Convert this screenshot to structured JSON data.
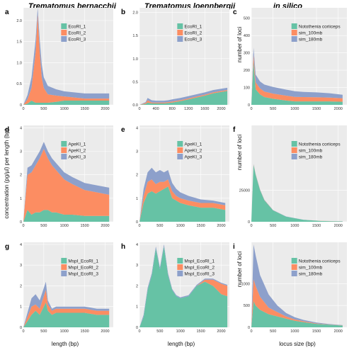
{
  "figure": {
    "col_titles": [
      "Trematomus bernacchii",
      "Trematomus loennbergii",
      "in silico"
    ],
    "ylabel_conc": "concentration (pg/µl) per length (bp)",
    "ylabel_loci": "number of loci",
    "xlabel_length": "length (bp)",
    "xlabel_locus": "locus size (bp)"
  },
  "colors": {
    "series1": "#66c2a5",
    "series2": "#fc8d62",
    "series3": "#8da0cb"
  },
  "chart_data": [
    {
      "id": "a",
      "letter": "a",
      "type": "area",
      "xlim": [
        0,
        2200
      ],
      "ylim": [
        0,
        2.3
      ],
      "xticks": [
        0,
        500,
        1000,
        1500,
        2000
      ],
      "xtick_labels": [
        "0",
        "500",
        "1000",
        "1500",
        "2000"
      ],
      "yticks": [
        0,
        0.5,
        1.0,
        1.5,
        2.0
      ],
      "ytick_labels": [
        "0",
        "0.5",
        "1.0",
        "1.5",
        "2.0"
      ],
      "legend": [
        "EcoRI_1",
        "EcoRI_2",
        "EcoRI_3"
      ],
      "xlabel": "",
      "x": [
        0,
        100,
        200,
        300,
        350,
        400,
        450,
        500,
        600,
        800,
        1000,
        1200,
        1500,
        1800,
        2100
      ],
      "series": [
        {
          "values": [
            0,
            0.03,
            0.1,
            0.05,
            0.05,
            0.05,
            0.05,
            0.05,
            0.05,
            0.07,
            0.1,
            0.1,
            0.1,
            0.1,
            0.1
          ]
        },
        {
          "values": [
            0,
            0.1,
            0.3,
            1.2,
            2.1,
            1.2,
            0.6,
            0.35,
            0.2,
            0.15,
            0.1,
            0.08,
            0.05,
            0.05,
            0.05
          ]
        },
        {
          "values": [
            0,
            0.1,
            0.25,
            0.3,
            0.4,
            0.3,
            0.3,
            0.25,
            0.2,
            0.15,
            0.12,
            0.12,
            0.12,
            0.12,
            0.12
          ]
        }
      ]
    },
    {
      "id": "b",
      "letter": "b",
      "type": "area",
      "xlim": [
        0,
        2200
      ],
      "ylim": [
        0,
        2.1
      ],
      "xticks": [
        0,
        400,
        800,
        1200,
        1600,
        2000
      ],
      "xtick_labels": [
        "0",
        "400",
        "800",
        "1200",
        "1600",
        "2000"
      ],
      "yticks": [
        0,
        0.5,
        1.0,
        1.5,
        2.0
      ],
      "ytick_labels": [
        "0.0",
        "0.5",
        "1.0",
        "1.5",
        "2.0"
      ],
      "legend": [
        "EcoRI_1",
        "EcoRI_2",
        "EcoRI_3"
      ],
      "xlabel": "",
      "x": [
        0,
        150,
        200,
        300,
        400,
        500,
        600,
        700,
        800,
        1000,
        1200,
        1400,
        1600,
        1800,
        2000,
        2150
      ],
      "series": [
        {
          "values": [
            0,
            0.02,
            0.05,
            0.03,
            0.03,
            0.03,
            0.03,
            0.04,
            0.05,
            0.08,
            0.12,
            0.16,
            0.2,
            0.25,
            0.28,
            0.3
          ]
        },
        {
          "values": [
            0,
            0.02,
            0.05,
            0.02,
            0.02,
            0.02,
            0.02,
            0.02,
            0.02,
            0.02,
            0.02,
            0.02,
            0.02,
            0.02,
            0.02,
            0.02
          ]
        },
        {
          "values": [
            0,
            0.02,
            0.05,
            0.05,
            0.04,
            0.04,
            0.04,
            0.04,
            0.05,
            0.05,
            0.05,
            0.05,
            0.05,
            0.05,
            0.05,
            0.05
          ]
        }
      ]
    },
    {
      "id": "c",
      "letter": "c",
      "type": "area",
      "xlim": [
        0,
        2200
      ],
      "ylim": [
        0,
        560
      ],
      "xticks": [
        0,
        500,
        1000,
        1500,
        2000
      ],
      "xtick_labels": [
        "0",
        "500",
        "1000",
        "1500",
        "2000"
      ],
      "yticks": [
        0,
        100,
        200,
        300,
        400,
        500
      ],
      "ytick_labels": [
        "0",
        "100",
        "200",
        "300",
        "400",
        "500"
      ],
      "legend": [
        "Notothenia coriiceps",
        "sim_100mb",
        "sim_180mb"
      ],
      "xlabel": "",
      "x": [
        0,
        50,
        100,
        200,
        300,
        500,
        800,
        1000,
        1200,
        1500,
        1800,
        2100
      ],
      "series": [
        {
          "values": [
            0,
            250,
            90,
            60,
            45,
            35,
            25,
            20,
            20,
            20,
            20,
            18
          ]
        },
        {
          "values": [
            0,
            40,
            40,
            35,
            32,
            30,
            28,
            26,
            25,
            24,
            22,
            20
          ]
        },
        {
          "values": [
            0,
            40,
            45,
            40,
            40,
            38,
            35,
            33,
            30,
            28,
            25,
            20
          ]
        }
      ]
    },
    {
      "id": "d",
      "letter": "d",
      "type": "area",
      "xlim": [
        0,
        2200
      ],
      "ylim": [
        0,
        4.1
      ],
      "xticks": [
        0,
        500,
        1000,
        1500,
        2000
      ],
      "xtick_labels": [
        "0",
        "500",
        "1000",
        "1500",
        "2000"
      ],
      "yticks": [
        0,
        1,
        2,
        3,
        4
      ],
      "ytick_labels": [
        "0",
        "1",
        "2",
        "3",
        "4"
      ],
      "legend": [
        "ApeKI_1",
        "ApeKI_2",
        "ApeKI_3"
      ],
      "xlabel": "",
      "x": [
        0,
        100,
        200,
        300,
        400,
        500,
        600,
        700,
        800,
        1000,
        1200,
        1500,
        1800,
        2100
      ],
      "series": [
        {
          "values": [
            0,
            0.5,
            0.3,
            0.4,
            0.4,
            0.5,
            0.5,
            0.4,
            0.4,
            0.3,
            0.3,
            0.25,
            0.25,
            0.25
          ]
        },
        {
          "values": [
            0,
            1.5,
            1.8,
            2.0,
            2.3,
            2.6,
            2.2,
            2.0,
            1.8,
            1.5,
            1.3,
            1.1,
            1.0,
            0.9
          ]
        },
        {
          "values": [
            0,
            0.3,
            0.3,
            0.3,
            0.3,
            0.3,
            0.3,
            0.3,
            0.3,
            0.3,
            0.3,
            0.3,
            0.3,
            0.3
          ]
        }
      ]
    },
    {
      "id": "e",
      "letter": "e",
      "type": "area",
      "xlim": [
        0,
        2200
      ],
      "ylim": [
        0,
        4.1
      ],
      "xticks": [
        0,
        500,
        1000,
        1500,
        2000
      ],
      "xtick_labels": [
        "0",
        "500",
        "1000",
        "1500",
        "2000"
      ],
      "yticks": [
        0,
        1,
        2,
        3,
        4
      ],
      "ytick_labels": [
        "0",
        "1",
        "2",
        "3",
        "4"
      ],
      "legend": [
        "ApeKI_1",
        "ApeKI_2",
        "ApeKI_3"
      ],
      "xlabel": "",
      "x": [
        0,
        100,
        200,
        300,
        400,
        500,
        600,
        700,
        800,
        900,
        1000,
        1200,
        1500,
        1800,
        2100
      ],
      "series": [
        {
          "values": [
            0,
            0.8,
            1.2,
            1.3,
            1.2,
            1.3,
            1.4,
            1.5,
            1.0,
            0.9,
            0.8,
            0.7,
            0.6,
            0.6,
            0.5
          ]
        },
        {
          "values": [
            0,
            0.3,
            0.5,
            0.5,
            0.4,
            0.4,
            0.3,
            0.3,
            0.3,
            0.2,
            0.2,
            0.2,
            0.2,
            0.2,
            0.2
          ]
        },
        {
          "values": [
            0,
            0.3,
            0.4,
            0.5,
            0.5,
            0.5,
            0.4,
            0.4,
            0.35,
            0.3,
            0.25,
            0.2,
            0.15,
            0.1,
            0.1
          ]
        }
      ]
    },
    {
      "id": "f",
      "letter": "f",
      "type": "area",
      "xlim": [
        0,
        2200
      ],
      "ylim": [
        0,
        76000
      ],
      "xticks": [
        0,
        500,
        1000,
        1500,
        2000
      ],
      "xtick_labels": [
        "0",
        "500",
        "1000",
        "1500",
        "2000"
      ],
      "yticks": [
        0,
        25000
      ],
      "ytick_labels": [
        "0",
        "25000"
      ],
      "legend": [
        "Notothenia coriiceps",
        "sim_100mb",
        "sim_180mb"
      ],
      "xlabel": "",
      "x": [
        0,
        50,
        100,
        200,
        300,
        500,
        800,
        1200,
        1600,
        2100
      ],
      "series": [
        {
          "values": [
            0,
            45000,
            37000,
            25000,
            17000,
            9000,
            4000,
            1500,
            600,
            300
          ]
        },
        {
          "values": [
            0,
            300,
            300,
            200,
            200,
            100,
            100,
            50,
            50,
            50
          ]
        },
        {
          "values": [
            0,
            300,
            300,
            200,
            200,
            100,
            100,
            50,
            50,
            50
          ]
        }
      ]
    },
    {
      "id": "g",
      "letter": "g",
      "type": "area",
      "xlim": [
        0,
        2200
      ],
      "ylim": [
        0,
        4.1
      ],
      "xticks": [
        0,
        500,
        1000,
        1500,
        2000
      ],
      "xtick_labels": [
        "0",
        "500",
        "1000",
        "1500",
        "2000"
      ],
      "yticks": [
        0,
        1,
        2,
        3,
        4
      ],
      "ytick_labels": [
        "0",
        "1",
        "2",
        "3",
        "4"
      ],
      "legend": [
        "MspI_EcoRI_1",
        "MspI_EcoRI_2",
        "MspI_EcoRI_3"
      ],
      "xlabel": "length (bp)",
      "x": [
        0,
        100,
        200,
        300,
        400,
        500,
        550,
        600,
        700,
        800,
        1000,
        1200,
        1500,
        1800,
        2100
      ],
      "series": [
        {
          "values": [
            0,
            0.3,
            0.6,
            0.8,
            0.6,
            1.0,
            1.2,
            0.8,
            0.6,
            0.7,
            0.7,
            0.7,
            0.7,
            0.6,
            0.6
          ]
        },
        {
          "values": [
            0,
            0.2,
            0.4,
            0.3,
            0.3,
            0.5,
            0.6,
            0.3,
            0.2,
            0.2,
            0.2,
            0.2,
            0.2,
            0.2,
            0.2
          ]
        },
        {
          "values": [
            0,
            0.2,
            0.4,
            0.5,
            0.4,
            0.4,
            0.4,
            0.2,
            0.1,
            0.1,
            0.1,
            0.1,
            0.1,
            0.1,
            0.1
          ]
        }
      ]
    },
    {
      "id": "h",
      "letter": "h",
      "type": "area",
      "xlim": [
        0,
        2200
      ],
      "ylim": [
        0,
        4.1
      ],
      "xticks": [
        0,
        500,
        1000,
        1500,
        2000
      ],
      "xtick_labels": [
        "0",
        "500",
        "1000",
        "1500",
        "2000"
      ],
      "yticks": [
        0,
        1,
        2,
        3,
        4
      ],
      "ytick_labels": [
        "0",
        "1",
        "2",
        "3",
        "4"
      ],
      "legend": [
        "MspI_EcoRI_1",
        "MspI_EcoRI_2",
        "MspI_EcoRI_3"
      ],
      "xlabel": "length (bp)",
      "x": [
        0,
        100,
        200,
        300,
        400,
        500,
        600,
        700,
        800,
        900,
        1000,
        1200,
        1400,
        1600,
        1800,
        2000,
        2150
      ],
      "series": [
        {
          "values": [
            0,
            0.5,
            1.8,
            2.5,
            3.8,
            2.8,
            3.9,
            2.5,
            1.8,
            1.5,
            1.4,
            1.5,
            2.0,
            2.2,
            2.0,
            1.6,
            1.5
          ]
        },
        {
          "values": [
            0,
            0,
            0,
            0,
            0,
            0,
            0,
            0,
            0,
            0,
            0,
            0,
            0,
            0.1,
            0.3,
            0.5,
            0.5
          ]
        },
        {
          "values": [
            0,
            0.1,
            0.1,
            0.1,
            0.1,
            0.1,
            0.1,
            0.1,
            0.05,
            0.05,
            0.05,
            0.05,
            0.05,
            0.05,
            0.05,
            0.05,
            0.05
          ]
        }
      ]
    },
    {
      "id": "i",
      "letter": "i",
      "type": "area",
      "xlim": [
        0,
        2200
      ],
      "ylim": [
        0,
        1950
      ],
      "xticks": [
        0,
        500,
        1000,
        1500,
        2000
      ],
      "xtick_labels": [
        "0",
        "500",
        "1000",
        "1500",
        "2000"
      ],
      "yticks": [
        0,
        500,
        1000
      ],
      "ytick_labels": [
        "0",
        "500",
        "1000"
      ],
      "legend": [
        "Notothenia coriiceps",
        "sim_100mb",
        "sim_180mb"
      ],
      "xlabel": "locus size (bp)",
      "x": [
        0,
        50,
        100,
        200,
        400,
        600,
        800,
        1000,
        1200,
        1500,
        1800,
        2100
      ],
      "series": [
        {
          "values": [
            0,
            600,
            500,
            400,
            300,
            250,
            200,
            150,
            120,
            80,
            60,
            40
          ]
        },
        {
          "values": [
            0,
            500,
            450,
            300,
            150,
            100,
            50,
            30,
            20,
            10,
            5,
            5
          ]
        },
        {
          "values": [
            0,
            800,
            700,
            500,
            300,
            150,
            80,
            50,
            30,
            20,
            10,
            5
          ]
        }
      ]
    }
  ]
}
